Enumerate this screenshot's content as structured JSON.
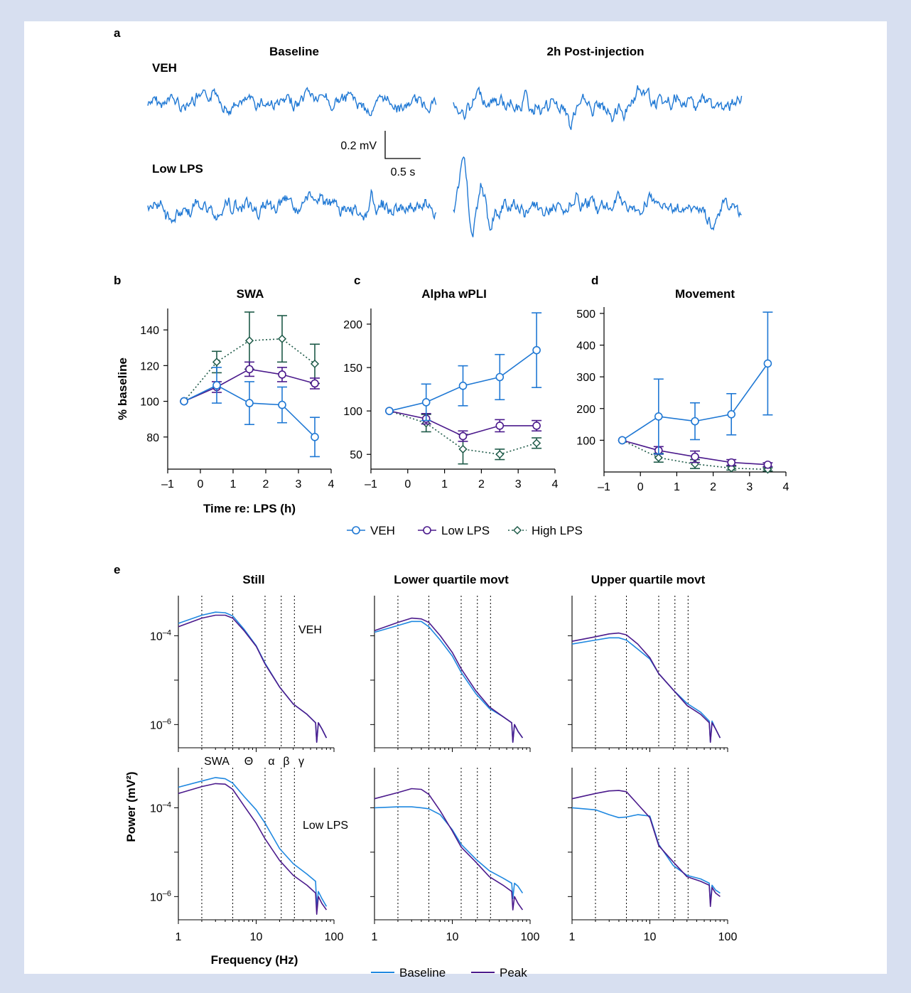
{
  "colors": {
    "veh": "#1f78d4",
    "low_lps": "#4b1a8c",
    "high_lps": "#1e5a48",
    "baseline": "#1f88e0",
    "peak": "#4b1a8c"
  },
  "panel_a": {
    "label": "a",
    "col_titles": [
      "Baseline",
      "2h Post-injection"
    ],
    "row_labels": [
      "VEH",
      "Low LPS"
    ],
    "scale_v": "0.2 mV",
    "scale_t": "0.5 s"
  },
  "panels_bcd": {
    "legend": [
      "VEH",
      "Low LPS",
      "High LPS"
    ],
    "x_label": "Time re: LPS (h)"
  },
  "panel_e": {
    "label": "e",
    "col_titles": [
      "Still",
      "Lower quartile movt",
      "Upper quartile movt"
    ],
    "row_labels": [
      "VEH",
      "Low LPS"
    ],
    "band_labels": [
      "SWA",
      "Θ",
      "α",
      "β",
      "γ"
    ],
    "x_label": "Frequency (Hz)",
    "y_label": "Power (mV²)",
    "legend": [
      "Baseline",
      "Peak"
    ]
  },
  "chart_data": [
    {
      "id": "b",
      "label": "b",
      "type": "line",
      "title": "SWA",
      "xlabel": "Time re: LPS (h)",
      "ylabel": "% baseline",
      "xlim": [
        -1,
        4
      ],
      "ylim": [
        62,
        152
      ],
      "xticks": [
        "–1",
        "0",
        "1",
        "2",
        "3",
        "4"
      ],
      "yticks": [
        "80",
        "100",
        "120",
        "140"
      ],
      "x": [
        -0.5,
        0.5,
        1.5,
        2.5,
        3.5
      ],
      "series": [
        {
          "name": "VEH",
          "values": [
            100,
            109,
            99,
            98,
            80
          ],
          "err": [
            0,
            10,
            12,
            10,
            11
          ]
        },
        {
          "name": "Low LPS",
          "values": [
            100,
            108,
            118,
            115,
            110
          ],
          "err": [
            0,
            3,
            4,
            4,
            3
          ]
        },
        {
          "name": "High LPS",
          "values": [
            100,
            122,
            134,
            135,
            121
          ],
          "err": [
            0,
            6,
            16,
            13,
            11
          ]
        }
      ]
    },
    {
      "id": "c",
      "label": "c",
      "type": "line",
      "title": "Alpha wPLI",
      "xlabel": "",
      "ylabel": "",
      "xlim": [
        -1,
        4
      ],
      "ylim": [
        33,
        218
      ],
      "xticks": [
        "–1",
        "0",
        "1",
        "2",
        "3",
        "4"
      ],
      "yticks": [
        "50",
        "100",
        "150",
        "200"
      ],
      "x": [
        -0.5,
        0.5,
        1.5,
        2.5,
        3.5
      ],
      "series": [
        {
          "name": "VEH",
          "values": [
            100,
            110,
            129,
            139,
            170
          ],
          "err": [
            0,
            21,
            23,
            26,
            43
          ]
        },
        {
          "name": "Low LPS",
          "values": [
            100,
            91,
            71,
            83,
            83
          ],
          "err": [
            0,
            6,
            6,
            7,
            6
          ]
        },
        {
          "name": "High LPS",
          "values": [
            100,
            86,
            56,
            50,
            63
          ],
          "err": [
            0,
            10,
            17,
            6,
            6
          ]
        }
      ]
    },
    {
      "id": "d",
      "label": "d",
      "type": "line",
      "title": "Movement",
      "xlabel": "",
      "ylabel": "",
      "xlim": [
        -1,
        4
      ],
      "ylim": [
        0,
        520
      ],
      "xticks": [
        "–1",
        "0",
        "1",
        "2",
        "3",
        "4"
      ],
      "yticks": [
        "100",
        "200",
        "300",
        "400",
        "500"
      ],
      "x": [
        -0.5,
        0.5,
        1.5,
        2.5,
        3.5
      ],
      "series": [
        {
          "name": "VEH",
          "values": [
            100,
            175,
            160,
            182,
            342
          ],
          "err": [
            0,
            118,
            58,
            65,
            162
          ]
        },
        {
          "name": "Low LPS",
          "values": [
            100,
            68,
            48,
            30,
            23
          ],
          "err": [
            0,
            12,
            18,
            9,
            6
          ]
        },
        {
          "name": "High LPS",
          "values": [
            100,
            45,
            25,
            12,
            8
          ],
          "err": [
            0,
            14,
            14,
            6,
            5
          ]
        }
      ]
    },
    {
      "id": "e",
      "type": "line",
      "xscale": "log",
      "yscale": "log",
      "xlabel": "Frequency (Hz)",
      "ylabel": "Power (mV²)",
      "xlim": [
        1,
        100
      ],
      "xticks": [
        "1",
        "10",
        "100"
      ],
      "ylim": [
        3e-07,
        0.0008
      ],
      "yticks": [
        "10–4",
        "10–6"
      ],
      "band_edges_hz": [
        2,
        5,
        13,
        21,
        31
      ],
      "freq_hz": [
        1,
        2,
        3,
        4,
        5,
        7,
        10,
        13,
        20,
        30,
        45,
        58,
        60,
        63,
        70,
        80
      ],
      "panels": [
        {
          "row": "VEH",
          "col": "Still",
          "series": [
            {
              "name": "Baseline",
              "values": [
                0.00019,
                0.00029,
                0.00034,
                0.00033,
                0.00028,
                0.00014,
                6e-05,
                2.4e-05,
                7e-06,
                2.9e-06,
                1.7e-06,
                1.1e-06,
                4e-07,
                1.1e-06,
                8e-07,
                5e-07
              ]
            },
            {
              "name": "Peak",
              "values": [
                0.00016,
                0.00025,
                0.00029,
                0.00029,
                0.00025,
                0.00013,
                5.8e-05,
                2.3e-05,
                7e-06,
                2.9e-06,
                1.7e-06,
                1.1e-06,
                4e-07,
                1.1e-06,
                8e-07,
                5e-07
              ]
            }
          ]
        },
        {
          "row": "VEH",
          "col": "Lower quartile movt",
          "series": [
            {
              "name": "Baseline",
              "values": [
                0.00012,
                0.00017,
                0.00021,
                0.00021,
                0.00016,
                8e-05,
                3.5e-05,
                1.5e-05,
                5e-06,
                2.3e-06,
                1.5e-06,
                1.1e-06,
                4e-07,
                1e-06,
                7e-07,
                5e-07
              ]
            },
            {
              "name": "Peak",
              "values": [
                0.00013,
                0.0002,
                0.00025,
                0.00024,
                0.0002,
                0.0001,
                4.2e-05,
                1.8e-05,
                5.8e-06,
                2.5e-06,
                1.5e-06,
                1.1e-06,
                4e-07,
                1e-06,
                7e-07,
                5e-07
              ]
            }
          ]
        },
        {
          "row": "VEH",
          "col": "Upper quartile movt",
          "series": [
            {
              "name": "Baseline",
              "values": [
                6.5e-05,
                8e-05,
                9e-05,
                9e-05,
                8e-05,
                5e-05,
                3e-05,
                1.4e-05,
                6e-06,
                3e-06,
                1.9e-06,
                1.2e-06,
                4e-07,
                1.2e-06,
                8e-07,
                5e-07
              ]
            },
            {
              "name": "Peak",
              "values": [
                7.5e-05,
                9.5e-05,
                0.00011,
                0.000115,
                0.000105,
                6.5e-05,
                3.2e-05,
                1.4e-05,
                6e-06,
                2.7e-06,
                1.7e-06,
                1.1e-06,
                4e-07,
                1.1e-06,
                8e-07,
                5e-07
              ]
            }
          ]
        },
        {
          "row": "Low LPS",
          "col": "Still",
          "series": [
            {
              "name": "Baseline",
              "values": [
                0.00029,
                0.0004,
                0.00048,
                0.00045,
                0.00036,
                0.00018,
                9e-05,
                4.5e-05,
                1.2e-05,
                5.5e-06,
                3.2e-06,
                2.2e-06,
                6e-07,
                1.3e-06,
                9e-07,
                6e-07
              ]
            },
            {
              "name": "Peak",
              "values": [
                0.00021,
                0.0003,
                0.00035,
                0.00034,
                0.00026,
                0.00011,
                4.5e-05,
                2e-05,
                6.5e-06,
                3e-06,
                1.8e-06,
                1.2e-06,
                4e-07,
                1e-06,
                7e-07,
                5e-07
              ]
            }
          ]
        },
        {
          "row": "Low LPS",
          "col": "Lower quartile movt",
          "series": [
            {
              "name": "Baseline",
              "values": [
                0.0001,
                0.000105,
                0.000105,
                0.0001,
                9.5e-05,
                7e-05,
                3.2e-05,
                1.5e-05,
                7e-06,
                3.8e-06,
                2.6e-06,
                2e-06,
                9e-07,
                2e-06,
                1.7e-06,
                1.2e-06
              ]
            },
            {
              "name": "Peak",
              "values": [
                0.00016,
                0.00022,
                0.00027,
                0.00026,
                0.0002,
                8.5e-05,
                3e-05,
                1.3e-05,
                6e-06,
                2.8e-06,
                1.8e-06,
                1.3e-06,
                5e-07,
                1e-06,
                7e-07,
                5e-07
              ]
            }
          ]
        },
        {
          "row": "Low LPS",
          "col": "Upper quartile movt",
          "series": [
            {
              "name": "Baseline",
              "values": [
                0.0001,
                9e-05,
                7e-05,
                6e-05,
                6.2e-05,
                7e-05,
                6.5e-05,
                1.5e-05,
                5e-06,
                3e-06,
                2.5e-06,
                2e-06,
                7e-07,
                1.8e-06,
                1.4e-06,
                1.2e-06
              ]
            },
            {
              "name": "Peak",
              "values": [
                0.00016,
                0.00021,
                0.00024,
                0.000245,
                0.00023,
                0.00012,
                6e-05,
                1.4e-05,
                6e-06,
                2.8e-06,
                2.2e-06,
                1.8e-06,
                6e-07,
                1.6e-06,
                1.2e-06,
                1e-06
              ]
            }
          ]
        }
      ]
    }
  ]
}
